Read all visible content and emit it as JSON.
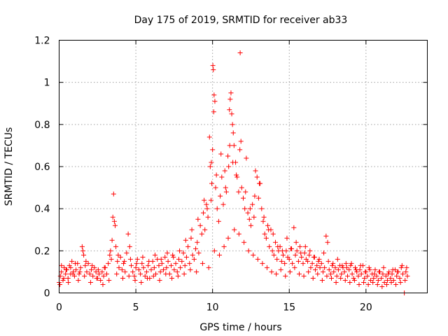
{
  "chart_data": {
    "type": "scatter",
    "title": "Day 175 of 2019, SRMTID for receiver ab33",
    "xlabel": "GPS time / hours",
    "ylabel": "SRMTID / TECUs",
    "xlim": [
      0,
      24
    ],
    "ylim": [
      0,
      1.2
    ],
    "xticks": [
      0,
      5,
      10,
      15,
      20
    ],
    "xtick_labels": [
      "0",
      "5",
      "10",
      "15",
      "20"
    ],
    "yticks": [
      0,
      0.2,
      0.4,
      0.6,
      0.8,
      1.0,
      1.2
    ],
    "ytick_labels": [
      "0",
      "0.2",
      "0.4",
      "0.6",
      "0.8",
      "1",
      "1.2"
    ],
    "grid": true,
    "marker": "plus",
    "color": "#ff0000",
    "series": [
      {
        "name": "SRMTID",
        "x": [
          0.0,
          0.08,
          0.15,
          0.25,
          0.33,
          0.42,
          0.5,
          0.58,
          0.67,
          0.75,
          0.83,
          0.92,
          1.0,
          1.1,
          1.2,
          1.3,
          1.4,
          1.5,
          1.55,
          1.6,
          1.7,
          1.8,
          1.9,
          2.0,
          2.1,
          2.2,
          2.3,
          2.4,
          2.5,
          2.6,
          2.7,
          2.8,
          2.9,
          3.0,
          3.1,
          3.2,
          3.3,
          3.4,
          3.45,
          3.5,
          3.55,
          3.6,
          3.65,
          3.7,
          3.8,
          3.9,
          4.0,
          4.1,
          4.2,
          4.3,
          4.4,
          4.5,
          4.6,
          4.7,
          4.8,
          4.9,
          5.0,
          5.1,
          5.2,
          5.3,
          5.4,
          5.5,
          5.6,
          5.7,
          5.8,
          5.9,
          6.0,
          6.1,
          6.2,
          6.3,
          6.4,
          6.5,
          6.6,
          6.7,
          6.8,
          6.9,
          7.0,
          7.1,
          7.2,
          7.3,
          7.4,
          7.5,
          7.6,
          7.7,
          7.8,
          7.9,
          8.0,
          8.1,
          8.2,
          8.3,
          8.4,
          8.5,
          8.6,
          8.7,
          8.8,
          8.9,
          9.0,
          9.1,
          9.2,
          9.3,
          9.4,
          9.5,
          9.6,
          9.7,
          9.8,
          9.85,
          9.9,
          9.95,
          10.0,
          10.02,
          10.05,
          10.08,
          10.1,
          10.15,
          10.2,
          10.3,
          10.4,
          10.5,
          10.6,
          10.7,
          10.8,
          10.9,
          11.0,
          11.05,
          11.1,
          11.15,
          11.2,
          11.25,
          11.3,
          11.35,
          11.4,
          11.5,
          11.6,
          11.7,
          11.8,
          11.85,
          11.9,
          12.0,
          12.1,
          12.2,
          12.3,
          12.4,
          12.5,
          12.6,
          12.7,
          12.8,
          12.9,
          13.0,
          13.1,
          13.2,
          13.3,
          13.4,
          13.5,
          13.6,
          13.7,
          13.8,
          13.9,
          14.0,
          14.1,
          14.2,
          14.3,
          14.4,
          14.5,
          14.6,
          14.7,
          14.8,
          14.9,
          15.0,
          15.1,
          15.2,
          15.3,
          15.4,
          15.5,
          15.6,
          15.7,
          15.8,
          15.9,
          16.0,
          16.1,
          16.2,
          16.3,
          16.4,
          16.5,
          16.6,
          16.7,
          16.8,
          16.9,
          17.0,
          17.1,
          17.2,
          17.3,
          17.4,
          17.5,
          17.6,
          17.7,
          17.8,
          17.9,
          18.0,
          18.1,
          18.2,
          18.3,
          18.4,
          18.5,
          18.6,
          18.7,
          18.8,
          18.9,
          19.0,
          19.1,
          19.2,
          19.3,
          19.4,
          19.5,
          19.6,
          19.7,
          19.8,
          19.9,
          20.0,
          20.1,
          20.2,
          20.3,
          20.4,
          20.5,
          20.6,
          20.7,
          20.8,
          20.9,
          21.0,
          21.1,
          21.2,
          21.3,
          21.4,
          21.5,
          21.6,
          21.7,
          21.8,
          21.9,
          22.0,
          22.1,
          22.2,
          22.3,
          22.4,
          22.5,
          22.6,
          22.7,
          0.05,
          0.3,
          0.6,
          0.9,
          1.25,
          1.65,
          2.05,
          2.45,
          2.85,
          3.25,
          3.75,
          4.15,
          4.55,
          4.95,
          5.35,
          5.75,
          6.15,
          6.55,
          6.95,
          7.35,
          7.75,
          8.15,
          8.55,
          8.95,
          9.35,
          9.75,
          10.12,
          10.45,
          10.75,
          11.02,
          11.42,
          11.72,
          12.05,
          12.35,
          12.65,
          12.95,
          13.25,
          13.55,
          13.85,
          14.15,
          14.45,
          14.75,
          15.05,
          15.35,
          15.65,
          15.95,
          16.25,
          16.55,
          16.85,
          17.15,
          17.45,
          17.75,
          18.05,
          18.35,
          18.65,
          18.95,
          19.25,
          19.55,
          19.85,
          20.15,
          20.45,
          20.75,
          21.05,
          21.35,
          21.65,
          21.95,
          22.25,
          22.55,
          0.15,
          0.45,
          0.75,
          1.05,
          1.35,
          1.75,
          2.15,
          2.55,
          2.95,
          3.35,
          3.85,
          4.25,
          4.65,
          5.05,
          5.45,
          5.85,
          6.25,
          6.65,
          7.05,
          7.45,
          7.85,
          8.25,
          8.65,
          9.05,
          9.45,
          9.65,
          9.92,
          10.25,
          10.55,
          10.85,
          11.12,
          11.32,
          11.55,
          11.78,
          12.15,
          12.45,
          12.75,
          13.05,
          13.35,
          13.65,
          13.95,
          14.25,
          14.55,
          14.85,
          15.15,
          15.45,
          15.75,
          16.05,
          16.35,
          16.65,
          16.95,
          17.25,
          17.55,
          17.85,
          18.15,
          18.45,
          18.75,
          19.05,
          19.35,
          19.65,
          19.95,
          20.25,
          20.55,
          20.85,
          21.15,
          21.45,
          21.75,
          22.05,
          22.35,
          22.65
        ],
        "y": [
          0.05,
          0.08,
          0.1,
          0.06,
          0.12,
          0.09,
          0.11,
          0.07,
          0.13,
          0.09,
          0.15,
          0.1,
          0.08,
          0.11,
          0.14,
          0.09,
          0.12,
          0.22,
          0.2,
          0.18,
          0.13,
          0.1,
          0.14,
          0.09,
          0.11,
          0.08,
          0.12,
          0.1,
          0.07,
          0.09,
          0.06,
          0.1,
          0.08,
          0.12,
          0.09,
          0.14,
          0.18,
          0.16,
          0.25,
          0.36,
          0.47,
          0.34,
          0.32,
          0.22,
          0.15,
          0.12,
          0.17,
          0.11,
          0.14,
          0.1,
          0.19,
          0.28,
          0.22,
          0.13,
          0.1,
          0.08,
          0.12,
          0.16,
          0.11,
          0.09,
          0.14,
          0.12,
          0.08,
          0.1,
          0.13,
          0.07,
          0.11,
          0.15,
          0.12,
          0.09,
          0.16,
          0.13,
          0.1,
          0.14,
          0.11,
          0.17,
          0.12,
          0.15,
          0.09,
          0.13,
          0.18,
          0.11,
          0.14,
          0.1,
          0.16,
          0.12,
          0.15,
          0.19,
          0.13,
          0.17,
          0.22,
          0.14,
          0.26,
          0.18,
          0.16,
          0.21,
          0.24,
          0.19,
          0.32,
          0.28,
          0.38,
          0.3,
          0.42,
          0.36,
          0.74,
          0.6,
          0.44,
          0.52,
          0.68,
          1.08,
          1.06,
          0.86,
          0.94,
          0.91,
          0.5,
          0.4,
          0.34,
          0.46,
          0.55,
          0.42,
          0.58,
          0.48,
          0.65,
          0.6,
          0.87,
          0.92,
          0.95,
          0.85,
          0.8,
          0.76,
          0.7,
          0.62,
          0.55,
          0.48,
          1.14,
          0.72,
          0.5,
          0.45,
          0.4,
          0.64,
          0.38,
          0.35,
          0.32,
          0.42,
          0.36,
          0.58,
          0.55,
          0.45,
          0.52,
          0.4,
          0.34,
          0.28,
          0.26,
          0.32,
          0.22,
          0.3,
          0.2,
          0.18,
          0.24,
          0.16,
          0.2,
          0.22,
          0.15,
          0.18,
          0.14,
          0.2,
          0.17,
          0.16,
          0.21,
          0.14,
          0.31,
          0.18,
          0.2,
          0.15,
          0.22,
          0.17,
          0.14,
          0.19,
          0.16,
          0.15,
          0.18,
          0.12,
          0.14,
          0.17,
          0.11,
          0.13,
          0.15,
          0.12,
          0.14,
          0.1,
          0.12,
          0.27,
          0.24,
          0.11,
          0.09,
          0.13,
          0.1,
          0.12,
          0.08,
          0.11,
          0.13,
          0.09,
          0.12,
          0.1,
          0.14,
          0.08,
          0.11,
          0.13,
          0.09,
          0.07,
          0.12,
          0.1,
          0.08,
          0.11,
          0.09,
          0.13,
          0.07,
          0.1,
          0.08,
          0.12,
          0.06,
          0.09,
          0.07,
          0.11,
          0.08,
          0.06,
          0.1,
          0.07,
          0.09,
          0.05,
          0.08,
          0.06,
          0.1,
          0.07,
          0.09,
          0.06,
          0.11,
          0.08,
          0.1,
          0.07,
          0.12,
          0.09,
          0.0,
          0.1,
          0.08,
          0.04,
          0.07,
          0.05,
          0.09,
          0.06,
          0.08,
          0.05,
          0.07,
          0.04,
          0.06,
          0.09,
          0.07,
          0.08,
          0.06,
          0.05,
          0.07,
          0.08,
          0.06,
          0.09,
          0.07,
          0.08,
          0.09,
          0.11,
          0.1,
          0.14,
          0.12,
          0.2,
          0.18,
          0.22,
          0.26,
          0.3,
          0.28,
          0.24,
          0.2,
          0.18,
          0.16,
          0.14,
          0.12,
          0.1,
          0.09,
          0.11,
          0.08,
          0.1,
          0.12,
          0.09,
          0.08,
          0.1,
          0.07,
          0.09,
          0.06,
          0.08,
          0.07,
          0.05,
          0.07,
          0.06,
          0.05,
          0.06,
          0.04,
          0.05,
          0.04,
          0.05,
          0.04,
          0.03,
          0.04,
          0.05,
          0.04,
          0.05,
          0.06,
          0.13,
          0.11,
          0.12,
          0.14,
          0.1,
          0.15,
          0.13,
          0.11,
          0.12,
          0.2,
          0.18,
          0.15,
          0.16,
          0.14,
          0.17,
          0.15,
          0.18,
          0.16,
          0.19,
          0.17,
          0.2,
          0.25,
          0.3,
          0.35,
          0.44,
          0.4,
          0.62,
          0.56,
          0.66,
          0.5,
          0.7,
          0.62,
          0.56,
          0.68,
          0.48,
          0.4,
          0.46,
          0.52,
          0.36,
          0.3,
          0.28,
          0.22,
          0.2,
          0.26,
          0.21,
          0.24,
          0.19,
          0.22,
          0.2,
          0.17,
          0.16,
          0.19,
          0.15,
          0.14,
          0.16,
          0.13,
          0.12,
          0.14,
          0.11,
          0.13,
          0.1,
          0.11,
          0.09,
          0.1,
          0.12,
          0.09,
          0.11,
          0.1,
          0.13,
          0.12
        ]
      }
    ]
  }
}
